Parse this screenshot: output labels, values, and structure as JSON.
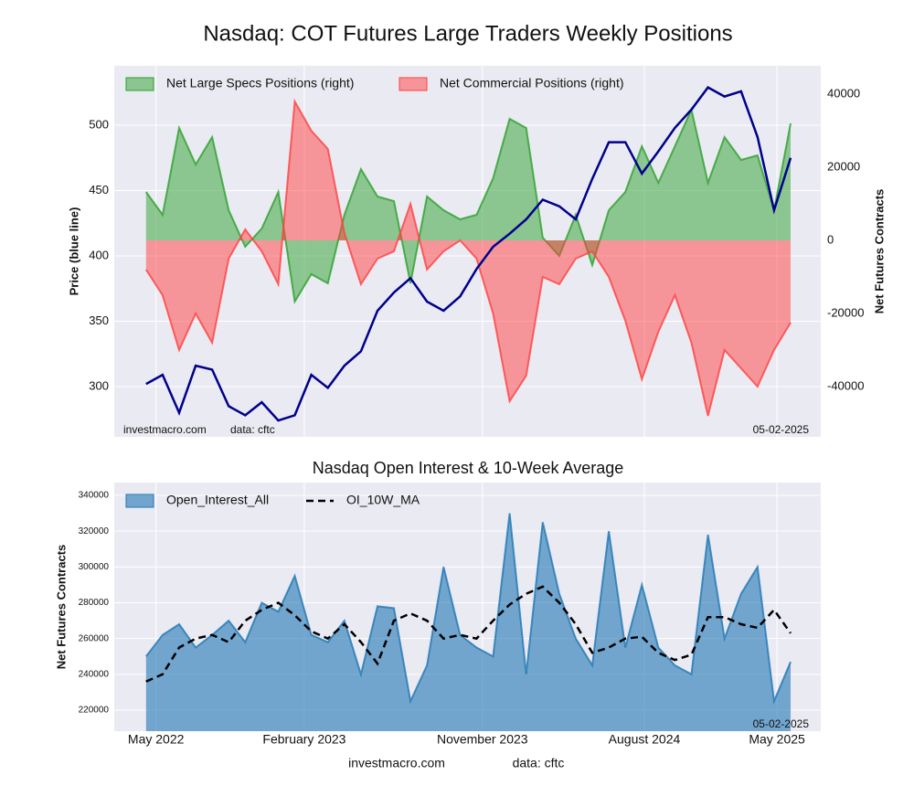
{
  "charts": [
    {
      "type": "line",
      "title": "Nasdaq: COT Futures Large Traders Weekly Positions",
      "ylabel": "Price (blue line)",
      "y2label": "Net Futures Contracts",
      "xlim": [
        -7.7,
        163.3
      ],
      "xticks": [
        2.4,
        38.3,
        81.4,
        120.6,
        152.7
      ],
      "ylim": [
        261.5,
        545.5
      ],
      "yticks": [
        300,
        350,
        400,
        450,
        500
      ],
      "y2lim": [
        -53750,
        47750
      ],
      "y2ticks": [
        -40000,
        -20000,
        0,
        20000,
        40000
      ],
      "grid": true,
      "legend_loc": "upper left",
      "annotations": [
        "investmacro.com",
        "data: cftc",
        "05-02-2025"
      ],
      "x": [
        0,
        4,
        8,
        12,
        16,
        20,
        24,
        28,
        32,
        36,
        40,
        44,
        48,
        52,
        56,
        60,
        64,
        68,
        72,
        76,
        80,
        84,
        88,
        92,
        96,
        100,
        104,
        108,
        112,
        116,
        120,
        124,
        128,
        132,
        136,
        140,
        144,
        148,
        152,
        156
      ],
      "series": [
        {
          "name": "Net Large Specs Positions (right)",
          "color": "#2ca02c",
          "axis": "y2",
          "style": "area",
          "values": [
            13250,
            7000,
            30750,
            20750,
            28250,
            8250,
            -1750,
            3250,
            13250,
            -16750,
            -9250,
            -11750,
            7000,
            19500,
            12000,
            10750,
            -11750,
            12000,
            8250,
            5750,
            7000,
            17000,
            33250,
            30750,
            750,
            -4250,
            7000,
            -6750,
            8250,
            13250,
            25750,
            15750,
            25750,
            35750,
            15750,
            28250,
            22000,
            23250,
            8250,
            32000
          ]
        },
        {
          "name": "Net Commercial Positions (right)",
          "color": "#ff4040",
          "axis": "y2",
          "style": "area",
          "values": [
            -8000,
            -15000,
            -30000,
            -20000,
            -28000,
            -5000,
            3000,
            -3000,
            -12000,
            38000,
            30000,
            25000,
            2000,
            -12000,
            -5000,
            -3000,
            10000,
            -8000,
            -3000,
            0,
            -5000,
            -20000,
            -44000,
            -37000,
            -10000,
            -12000,
            -5000,
            -3000,
            -10000,
            -22000,
            -38000,
            -25000,
            -15000,
            -28000,
            -48000,
            -30000,
            -35000,
            -40000,
            -30000,
            -22500
          ]
        },
        {
          "color": "#00008b",
          "style": "line",
          "values": [
            302,
            309,
            280,
            316,
            313,
            285,
            278,
            288,
            274,
            278,
            309,
            299,
            316,
            327,
            358,
            372,
            383,
            365,
            358,
            369,
            390,
            407,
            417,
            428,
            443,
            438,
            428,
            459,
            487,
            487,
            463,
            480,
            498,
            512,
            529,
            522,
            526,
            491,
            435,
            475
          ]
        }
      ]
    },
    {
      "type": "line",
      "title": "Nasdaq Open Interest & 10-Week Average",
      "ylabel": "Net Futures Contracts",
      "xlim": [
        -7.7,
        163.3
      ],
      "xticks": [
        {
          "value": 2.4,
          "label": "May 2022"
        },
        {
          "value": 38.3,
          "label": "February 2023"
        },
        {
          "value": 81.4,
          "label": "November 2023"
        },
        {
          "value": 120.6,
          "label": "August 2024"
        },
        {
          "value": 152.7,
          "label": "May 2025"
        }
      ],
      "ylim": [
        208250,
        347150
      ],
      "yticks": [
        220000,
        240000,
        260000,
        280000,
        300000,
        320000,
        340000
      ],
      "grid": true,
      "legend_loc": "upper left",
      "annotations": [
        "05-02-2025"
      ],
      "x": [
        0,
        4,
        8,
        12,
        16,
        20,
        24,
        28,
        32,
        36,
        40,
        44,
        48,
        52,
        56,
        60,
        64,
        68,
        72,
        76,
        80,
        84,
        88,
        92,
        96,
        100,
        104,
        108,
        112,
        116,
        120,
        124,
        128,
        132,
        136,
        140,
        144,
        148,
        152,
        156
      ],
      "series": [
        {
          "name": "Open_Interest_All",
          "color": "#1f77b4",
          "style": "area",
          "values": [
            250000,
            262000,
            268000,
            255000,
            262000,
            270000,
            258000,
            280000,
            275000,
            295000,
            262000,
            258000,
            270000,
            240000,
            278000,
            277000,
            225000,
            245000,
            300000,
            262000,
            255000,
            250000,
            330000,
            240000,
            325000,
            285000,
            260000,
            245000,
            320000,
            255000,
            290000,
            255000,
            245000,
            240000,
            318000,
            260000,
            285000,
            300000,
            225000,
            247000
          ]
        },
        {
          "name": "OI_10W_MA",
          "color": "#000000",
          "style": "dash",
          "values": [
            236000,
            240000,
            255000,
            260000,
            262000,
            258000,
            270000,
            276000,
            280000,
            273000,
            264000,
            260000,
            268000,
            258000,
            246000,
            270000,
            274000,
            270000,
            260000,
            262000,
            260000,
            270000,
            279000,
            285000,
            289000,
            280000,
            268000,
            252000,
            255000,
            260000,
            261000,
            252000,
            248000,
            251000,
            272000,
            272000,
            268000,
            266000,
            276000,
            263000
          ]
        }
      ]
    }
  ],
  "footer": [
    "investmacro.com",
    "data: cftc"
  ]
}
